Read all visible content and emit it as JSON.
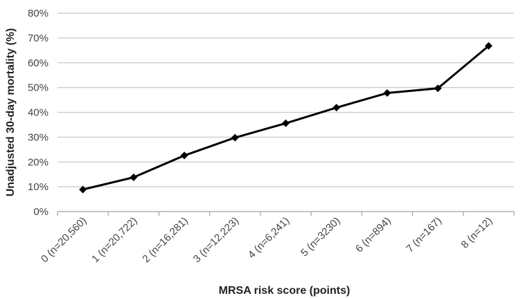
{
  "chart_data": {
    "type": "line",
    "categories": [
      "0 (n=20,560)",
      "1 (n=20,722)",
      "2 (n=16,281)",
      "3 (n=12,223)",
      "4 (n=6,241)",
      "5 (n=3230)",
      "6 (n=894)",
      "7 (n=167)",
      "8 (n=12)"
    ],
    "values": [
      8.9,
      13.8,
      22.6,
      29.8,
      35.6,
      41.9,
      47.8,
      49.7,
      66.8
    ],
    "xlabel": "MRSA risk score (points)",
    "ylabel": "Unadjusted 30-day mortality (%)",
    "ylim": [
      0,
      80
    ],
    "yticks": [
      "0%",
      "10%",
      "20%",
      "30%",
      "40%",
      "50%",
      "60%",
      "70%",
      "80%"
    ],
    "grid": true,
    "legend": "none",
    "line_color": "#000000",
    "marker": "diamond"
  }
}
